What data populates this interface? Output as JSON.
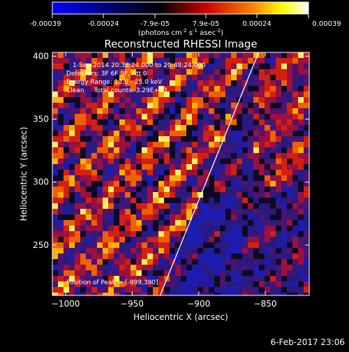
{
  "colorbar": {
    "ticks": [
      "-0.00039",
      "-0.00024",
      "-7.9e-05",
      "7.9e-05",
      "0.00024",
      "0.00039"
    ],
    "units_main": "(photons cm",
    "units_sup1": "-2",
    "units_mid": " s",
    "units_sup2": "-1",
    "units_end": " asec",
    "units_sup3": "-2",
    "units_close": ")"
  },
  "info": {
    "line1": "1-Sep-2014 20:38:24.000 to 20:48:24.000",
    "line2": "Detectors: 3F 6F 9F, Att 0",
    "line3": "Energy Range: 12.0 - 25.0 keV",
    "line4": "Clean     Total counts: 3.29E+03",
    "peak": "Position of Peak = [-899,390]"
  },
  "footer": {
    "date": "6-Feb-2017 23:06"
  },
  "chart_data": {
    "type": "heatmap",
    "title": "Reconstructed RHESSI Image",
    "xlabel": "Heliocentric X (arcsec)",
    "ylabel": "Heliocentric Y (arcsec)",
    "xlim": [
      -1010,
      -817
    ],
    "ylim": [
      210,
      403
    ],
    "x_ticks": [
      -1000,
      -950,
      -900,
      -850
    ],
    "y_ticks": [
      250,
      300,
      350,
      400
    ],
    "colorbar_range": [
      -0.00039,
      0.00039
    ],
    "colorbar_colors": [
      "#0000ff",
      "#000000",
      "#ff0000",
      "#ffff00",
      "#ffffff"
    ],
    "limb_line": {
      "x": [
        -929,
        -855
      ],
      "y": [
        210,
        403
      ]
    },
    "peak": {
      "x": -899,
      "y": 390
    }
  }
}
